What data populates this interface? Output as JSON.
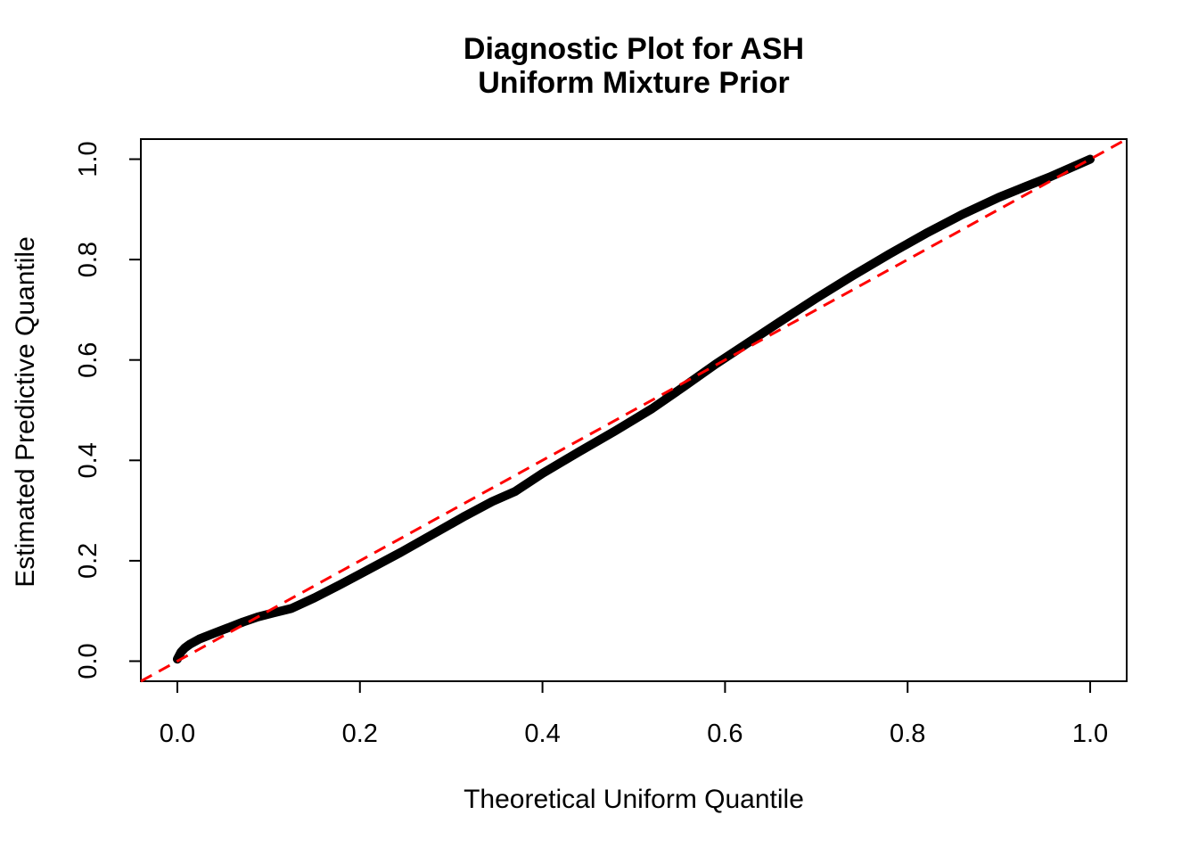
{
  "chart_data": {
    "type": "line",
    "title_line1": "Diagnostic Plot for ASH",
    "title_line2": "Uniform Mixture Prior",
    "xlabel": "Theoretical Uniform Quantile",
    "ylabel": "Estimated Predictive Quantile",
    "xlim": [
      -0.04,
      1.04
    ],
    "ylim": [
      -0.04,
      1.04
    ],
    "x_tick_values": [
      0.0,
      0.2,
      0.4,
      0.6,
      0.8,
      1.0
    ],
    "x_tick_labels": [
      "0.0",
      "0.2",
      "0.4",
      "0.6",
      "0.8",
      "1.0"
    ],
    "y_tick_values": [
      0.0,
      0.2,
      0.4,
      0.6,
      0.8,
      1.0
    ],
    "y_tick_labels": [
      "0.0",
      "0.2",
      "0.4",
      "0.6",
      "0.8",
      "1.0"
    ],
    "grid": false,
    "legend_position": "none",
    "frame_color": "#000000",
    "background_color": "#ffffff",
    "series": [
      {
        "name": "estimated-predictive-quantiles",
        "type": "line",
        "style": "solid-thick",
        "color": "#000000",
        "points": [
          [
            0.0,
            0.004
          ],
          [
            0.004,
            0.018
          ],
          [
            0.008,
            0.026
          ],
          [
            0.014,
            0.034
          ],
          [
            0.024,
            0.044
          ],
          [
            0.038,
            0.054
          ],
          [
            0.055,
            0.066
          ],
          [
            0.072,
            0.078
          ],
          [
            0.088,
            0.088
          ],
          [
            0.105,
            0.096
          ],
          [
            0.125,
            0.105
          ],
          [
            0.15,
            0.126
          ],
          [
            0.18,
            0.154
          ],
          [
            0.21,
            0.183
          ],
          [
            0.245,
            0.217
          ],
          [
            0.28,
            0.253
          ],
          [
            0.315,
            0.289
          ],
          [
            0.345,
            0.318
          ],
          [
            0.37,
            0.338
          ],
          [
            0.4,
            0.374
          ],
          [
            0.44,
            0.417
          ],
          [
            0.48,
            0.459
          ],
          [
            0.52,
            0.503
          ],
          [
            0.555,
            0.547
          ],
          [
            0.59,
            0.592
          ],
          [
            0.625,
            0.634
          ],
          [
            0.66,
            0.676
          ],
          [
            0.7,
            0.723
          ],
          [
            0.74,
            0.768
          ],
          [
            0.78,
            0.811
          ],
          [
            0.82,
            0.852
          ],
          [
            0.86,
            0.89
          ],
          [
            0.9,
            0.924
          ],
          [
            0.93,
            0.946
          ],
          [
            0.955,
            0.964
          ],
          [
            0.975,
            0.98
          ],
          [
            0.99,
            0.992
          ],
          [
            1.0,
            1.0
          ]
        ]
      },
      {
        "name": "identity-reference-line",
        "type": "line",
        "style": "dashed",
        "color": "#FF0000",
        "points": [
          [
            -0.04,
            -0.04
          ],
          [
            1.04,
            1.04
          ]
        ]
      }
    ]
  }
}
